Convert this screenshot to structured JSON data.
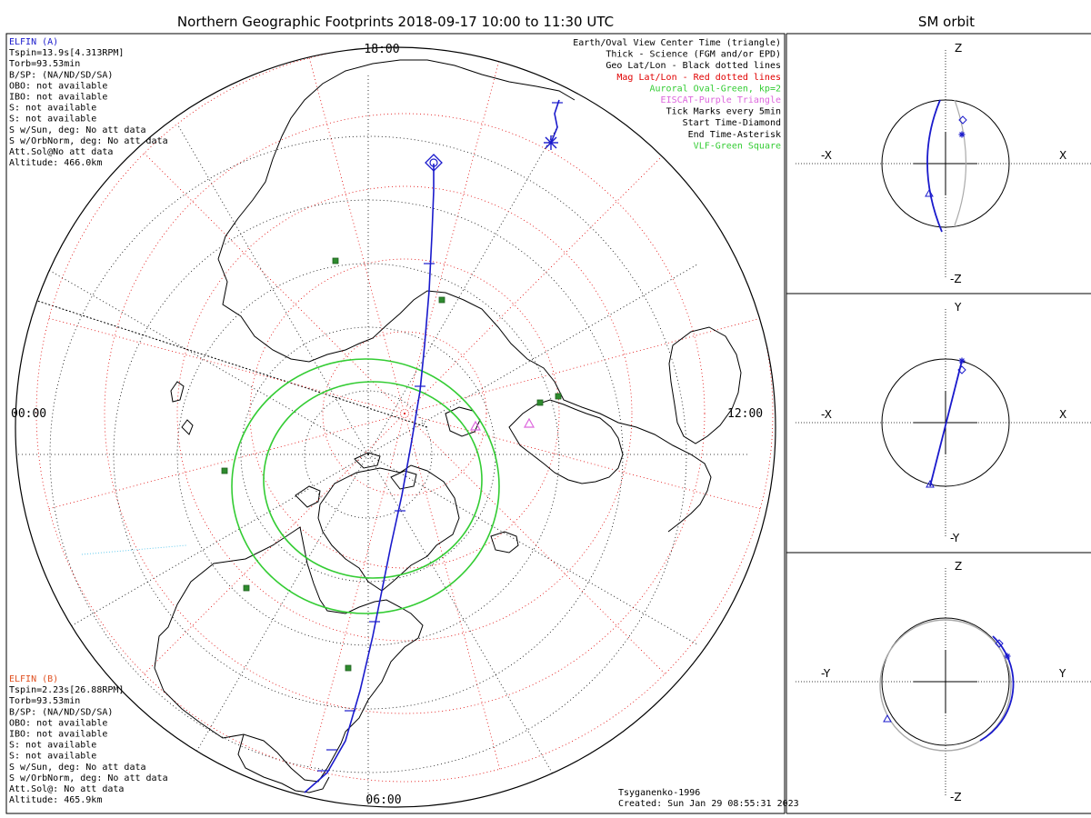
{
  "main_title": "Northern Geographic Footprints 2018-09-17 10:00 to 11:30 UTC",
  "side_title": "SM orbit",
  "map": {
    "time_labels": {
      "top": "18:00",
      "left": "00:00",
      "right": "12:00",
      "bottom": "06:00"
    }
  },
  "elfin_a": {
    "name": "ELFIN (A)",
    "lines": [
      "Tspin=13.9s[4.313RPM]",
      "Torb=93.53min",
      "B/SP: (NA/ND/SD/SA)",
      "OBO: not available",
      "IBO: not available",
      "S: not available",
      "S: not available",
      "S w/Sun, deg: No att data",
      "S w/OrbNorm, deg: No att data",
      "Att.Sol@No att data",
      "Altitude: 466.0km"
    ]
  },
  "elfin_b": {
    "name": "ELFIN (B)",
    "lines": [
      "Tspin=2.23s[26.88RPM]",
      "Torb=93.53min",
      "B/SP: (NA/ND/SD/SA)",
      "OBO: not available",
      "IBO: not available",
      "S: not available",
      "S: not available",
      "S w/Sun, deg: No att data",
      "S w/OrbNorm, deg: No att data",
      "Att.Sol@: No att data",
      "Altitude: 465.9km"
    ]
  },
  "legend": [
    {
      "text": "Earth/Oval View Center Time (triangle)",
      "color": "#000000"
    },
    {
      "text": "Thick - Science (FGM and/or EPD)",
      "color": "#000000"
    },
    {
      "text": "Geo Lat/Lon - Black dotted lines",
      "color": "#000000"
    },
    {
      "text": "Mag Lat/Lon - Red dotted lines",
      "color": "#e00000"
    },
    {
      "text": "Auroral Oval-Green, kp=2",
      "color": "#33cc33"
    },
    {
      "text": "EISCAT-Purple Triangle",
      "color": "#dd66dd"
    },
    {
      "text": "Tick Marks every 5min",
      "color": "#000000"
    },
    {
      "text": "Start Time-Diamond",
      "color": "#000000"
    },
    {
      "text": "End Time-Asterisk",
      "color": "#000000"
    },
    {
      "text": "VLF-Green Square",
      "color": "#33cc33"
    }
  ],
  "credits": {
    "model": "Tsyganenko-1996",
    "created": "Created: Sun Jan 29 08:55:31 2023"
  },
  "orbit_panels": [
    {
      "top": "Z",
      "bottom": "-Z",
      "left": "-X",
      "right": "X"
    },
    {
      "top": "Y",
      "bottom": "-Y",
      "left": "-X",
      "right": "X"
    },
    {
      "top": "Z",
      "bottom": "-Z",
      "left": "-Y",
      "right": "Y"
    }
  ],
  "colors": {
    "orbit": "#1a1acc",
    "oval": "#33cc33",
    "mag_grid": "#e00000",
    "geo_grid": "#000000",
    "eiscat": "#dd66dd",
    "vlf": "#2e8b2e",
    "orbit_gray": "#aaaaaa",
    "elfin_b_label": "#e05020"
  }
}
